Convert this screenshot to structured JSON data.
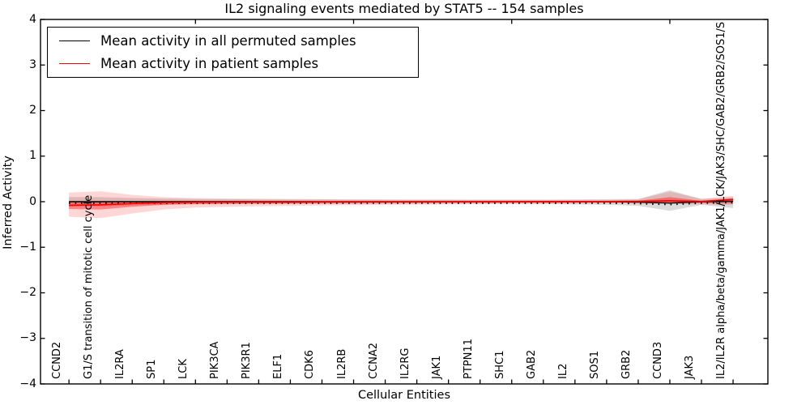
{
  "chart_data": {
    "type": "line",
    "title": "IL2 signaling events mediated by STAT5 -- 154 samples",
    "xlabel": "Cellular Entities",
    "ylabel": "Inferred Activity",
    "ylim": [
      -4,
      4
    ],
    "ytick_values": [
      4,
      3,
      2,
      1,
      0,
      -1,
      -2,
      -3,
      -4
    ],
    "ytick_labels": [
      "4",
      "3",
      "2",
      "1",
      "0",
      "−1",
      "−2",
      "−3",
      "−4"
    ],
    "grid": false,
    "legend_position": "upper left",
    "categories": [
      "CCND2",
      "G1/S transition of mitotic cell cycle",
      "IL2RA",
      "SP1",
      "LCK",
      "PIK3CA",
      "PIK3R1",
      "ELF1",
      "CDK6",
      "IL2RB",
      "CCNA2",
      "IL2RG",
      "JAK1",
      "PTPN11",
      "SHC1",
      "GAB2",
      "IL2",
      "SOS1",
      "GRB2",
      "CCND3",
      "JAK3",
      "IL2/IL2R alpha/beta/gamma/JAK1/LCK/JAK3/SHC/GAB2/GRB2/SOS1/S"
    ],
    "series": [
      {
        "name": "Mean activity in all permuted samples",
        "color": "#000000",
        "marker": "dotted",
        "values": [
          0,
          0,
          0,
          0,
          0,
          0,
          0,
          0,
          0,
          0,
          0,
          0,
          0,
          0,
          0,
          0,
          0,
          0,
          -0.01,
          -0.03,
          0,
          0.01
        ]
      },
      {
        "name": "Mean activity in patient samples",
        "color": "#ff0000",
        "marker": "none",
        "values": [
          -0.08,
          -0.07,
          -0.04,
          -0.02,
          -0.015,
          -0.012,
          -0.01,
          -0.01,
          -0.008,
          -0.007,
          -0.006,
          -0.005,
          -0.004,
          -0.003,
          -0.002,
          0,
          0.002,
          0.004,
          0.008,
          0.02,
          0.005,
          0.05
        ]
      }
    ],
    "bands": [
      {
        "name": "permuted-samples-range",
        "color": "#999999",
        "opacity": 0.35,
        "upper": [
          0.1,
          0.1,
          0.08,
          0.07,
          0.06,
          0.055,
          0.05,
          0.05,
          0.048,
          0.046,
          0.045,
          0.045,
          0.045,
          0.045,
          0.045,
          0.045,
          0.05,
          0.055,
          0.06,
          0.25,
          0.06,
          0.1
        ],
        "lower": [
          -0.1,
          -0.1,
          -0.08,
          -0.07,
          -0.06,
          -0.055,
          -0.05,
          -0.05,
          -0.048,
          -0.046,
          -0.045,
          -0.045,
          -0.045,
          -0.045,
          -0.045,
          -0.05,
          -0.06,
          -0.07,
          -0.09,
          -0.2,
          -0.07,
          -0.14
        ]
      },
      {
        "name": "patient-samples-outer-range",
        "color": "#ff0000",
        "opacity": 0.16,
        "upper": [
          0.2,
          0.23,
          0.15,
          0.1,
          0.08,
          0.07,
          0.065,
          0.06,
          0.055,
          0.05,
          0.05,
          0.045,
          0.045,
          0.04,
          0.04,
          0.04,
          0.04,
          0.04,
          0.05,
          0.22,
          0.06,
          0.13
        ],
        "lower": [
          -0.33,
          -0.36,
          -0.26,
          -0.17,
          -0.13,
          -0.11,
          -0.1,
          -0.09,
          -0.08,
          -0.075,
          -0.07,
          -0.065,
          -0.06,
          -0.055,
          -0.05,
          -0.05,
          -0.045,
          -0.04,
          -0.04,
          -0.05,
          -0.06,
          -0.07
        ]
      },
      {
        "name": "patient-samples-inner-range",
        "color": "#ff0000",
        "opacity": 0.38,
        "upper": [
          0.01,
          0.01,
          0.01,
          0.01,
          0.01,
          0.01,
          0.01,
          0.01,
          0.01,
          0.01,
          0.01,
          0.01,
          0.01,
          0.01,
          0.012,
          0.015,
          0.015,
          0.02,
          0.02,
          0.1,
          0.02,
          0.07
        ],
        "lower": [
          -0.16,
          -0.17,
          -0.11,
          -0.07,
          -0.05,
          -0.045,
          -0.04,
          -0.035,
          -0.03,
          -0.03,
          -0.028,
          -0.026,
          -0.024,
          -0.022,
          -0.02,
          -0.02,
          -0.018,
          -0.016,
          -0.015,
          -0.03,
          -0.025,
          -0.04
        ]
      }
    ]
  }
}
